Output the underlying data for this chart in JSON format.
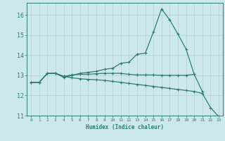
{
  "title": "",
  "xlabel": "Humidex (Indice chaleur)",
  "background_color": "#cce8ed",
  "line_color": "#2e7d74",
  "grid_color": "#b0d0d8",
  "x": [
    0,
    1,
    2,
    3,
    4,
    5,
    6,
    7,
    8,
    9,
    10,
    11,
    12,
    13,
    14,
    15,
    16,
    17,
    18,
    19,
    20,
    21,
    22,
    23
  ],
  "line1": [
    12.65,
    12.65,
    13.1,
    13.1,
    12.9,
    13.0,
    13.1,
    13.15,
    13.2,
    13.3,
    13.35,
    13.6,
    13.65,
    14.05,
    14.1,
    15.15,
    16.3,
    15.75,
    15.05,
    14.3,
    13.05,
    null,
    null,
    null
  ],
  "line2": [
    12.65,
    12.65,
    13.1,
    13.1,
    12.95,
    12.88,
    12.83,
    12.8,
    12.78,
    12.75,
    12.7,
    12.65,
    12.6,
    12.55,
    12.5,
    12.45,
    12.4,
    12.35,
    12.3,
    12.25,
    12.2,
    12.1,
    11.4,
    10.95
  ],
  "line3": [
    12.65,
    12.65,
    13.1,
    13.1,
    12.95,
    13.02,
    13.05,
    13.05,
    13.08,
    13.1,
    13.1,
    13.1,
    13.05,
    13.02,
    13.02,
    13.02,
    13.0,
    13.0,
    13.0,
    13.0,
    13.05,
    12.2,
    null,
    null
  ],
  "ylim": [
    11.0,
    16.6
  ],
  "yticks": [
    11,
    12,
    13,
    14,
    15,
    16
  ],
  "xticks": [
    0,
    1,
    2,
    3,
    4,
    5,
    6,
    7,
    8,
    9,
    10,
    11,
    12,
    13,
    14,
    15,
    16,
    17,
    18,
    19,
    20,
    21,
    22,
    23
  ]
}
